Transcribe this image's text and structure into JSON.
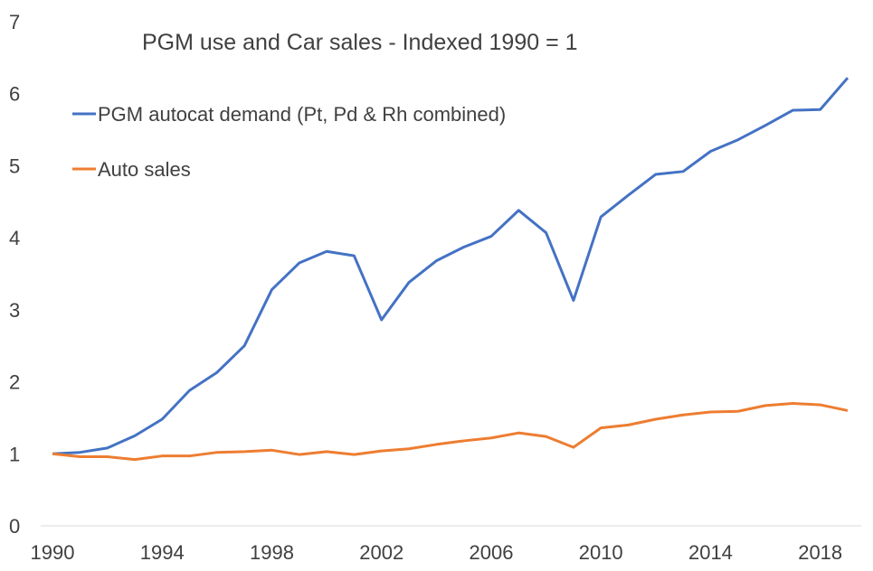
{
  "chart_data": {
    "type": "line",
    "title": "PGM use and Car sales - Indexed 1990 = 1",
    "xlabel": "",
    "ylabel": "",
    "xlim": [
      1990,
      2019
    ],
    "ylim": [
      0,
      7
    ],
    "x_ticks": [
      "1990",
      "1994",
      "1998",
      "2002",
      "2006",
      "2010",
      "2014",
      "2018"
    ],
    "y_ticks": [
      "0",
      "1",
      "2",
      "3",
      "4",
      "5",
      "6",
      "7"
    ],
    "grid": false,
    "legend_position": "top-left",
    "x": [
      1990,
      1991,
      1992,
      1993,
      1994,
      1995,
      1996,
      1997,
      1998,
      1999,
      2000,
      2001,
      2002,
      2003,
      2004,
      2005,
      2006,
      2007,
      2008,
      2009,
      2010,
      2011,
      2012,
      2013,
      2014,
      2015,
      2016,
      2017,
      2018,
      2019
    ],
    "series": [
      {
        "name": "PGM autocat demand (Pt, Pd & Rh combined)",
        "color": "#4472c4",
        "values": [
          1.0,
          1.02,
          1.08,
          1.25,
          1.48,
          1.88,
          2.13,
          2.5,
          3.28,
          3.65,
          3.81,
          3.75,
          2.86,
          3.38,
          3.68,
          3.87,
          4.02,
          4.38,
          4.07,
          3.13,
          4.29,
          4.59,
          4.88,
          4.92,
          5.2,
          5.36,
          5.56,
          5.77,
          5.78,
          6.22
        ]
      },
      {
        "name": "Auto sales",
        "color": "#ed7d31",
        "values": [
          1.0,
          0.96,
          0.96,
          0.92,
          0.97,
          0.97,
          1.02,
          1.03,
          1.05,
          0.99,
          1.03,
          0.99,
          1.04,
          1.07,
          1.13,
          1.18,
          1.22,
          1.29,
          1.24,
          1.09,
          1.36,
          1.4,
          1.48,
          1.54,
          1.58,
          1.59,
          1.67,
          1.7,
          1.68,
          1.6
        ]
      }
    ]
  }
}
